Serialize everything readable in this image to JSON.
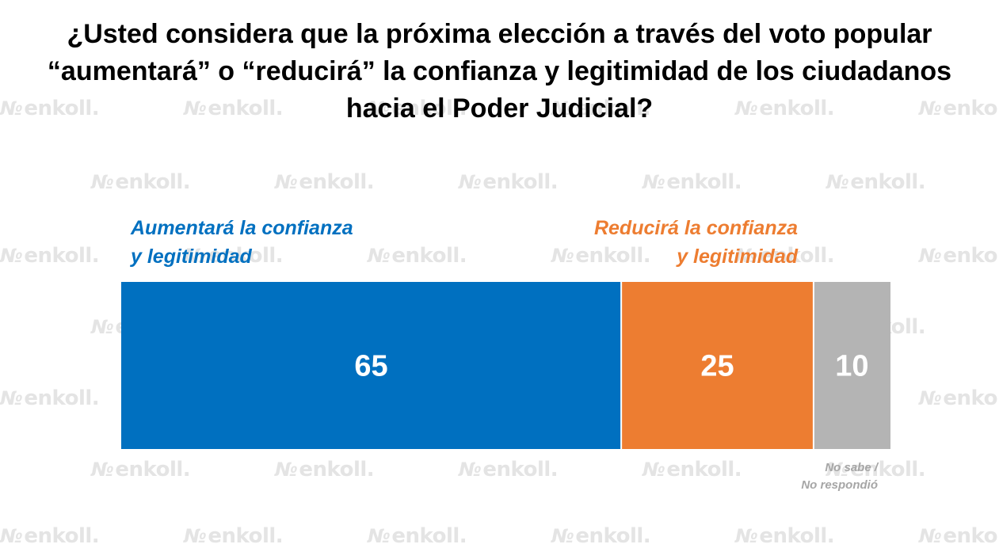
{
  "watermark": {
    "text": "enkoll.",
    "logo": "№"
  },
  "chart_data": {
    "type": "bar",
    "orientation": "horizontal-stacked",
    "title_lines": [
      "¿Usted considera que la próxima elección a través del voto popular",
      "“aumentará” o “reducirá” la confianza y legitimidad de los ciudadanos",
      "hacia el Poder Judicial?"
    ],
    "unit": "%",
    "total": 100,
    "series": [
      {
        "label_lines": [
          "Aumentará la confianza",
          "y legitimidad"
        ],
        "value": 65,
        "color": "#0070c0"
      },
      {
        "label_lines": [
          "Reducirá la confianza",
          "y legitimidad"
        ],
        "value": 25,
        "color": "#ed7d31"
      },
      {
        "label_lines": [
          "No sabe /",
          "No respondió"
        ],
        "value": 10,
        "color": "#b4b4b4"
      }
    ]
  }
}
